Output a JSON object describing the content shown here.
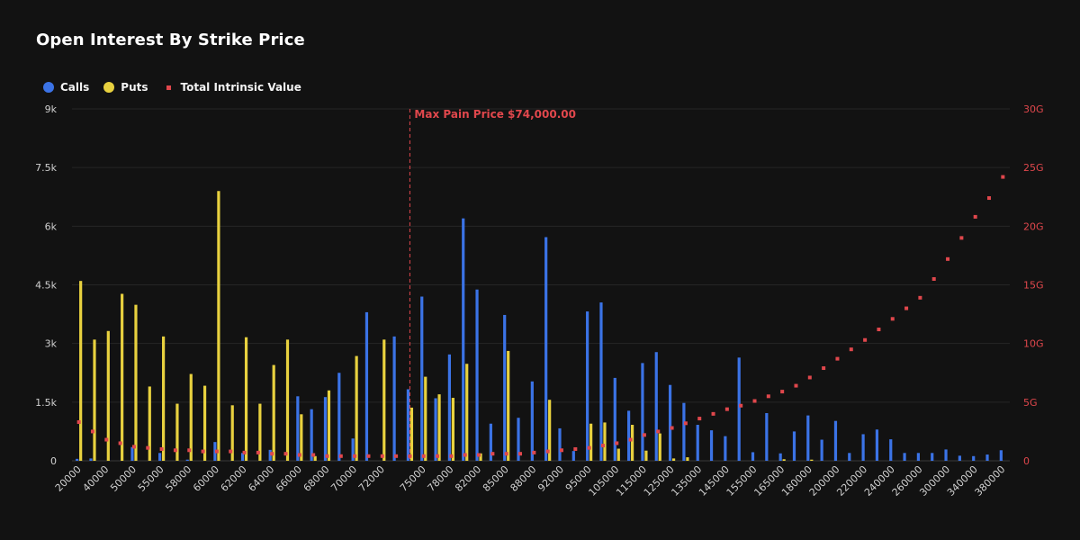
{
  "title": "Open Interest By Strike Price",
  "colors": {
    "calls": "#3b73e6",
    "puts": "#e8d13f",
    "intrinsic": "#e0474c",
    "maxpain": "#e0474c",
    "text": "#d0d0d0",
    "grid": "#262626"
  },
  "legend": {
    "calls": "Calls",
    "puts": "Puts",
    "intrinsic": "Total Intrinsic Value"
  },
  "chart_data": {
    "type": "bar",
    "title": "Open Interest By Strike Price",
    "left_axis": {
      "ticks": [
        "0",
        "1.5k",
        "3k",
        "4.5k",
        "6k",
        "7.5k",
        "9k"
      ],
      "range": [
        0,
        9000
      ]
    },
    "right_axis": {
      "ticks": [
        "0",
        "5G",
        "10G",
        "15G",
        "20G",
        "25G",
        "30G"
      ],
      "range": [
        0,
        30
      ]
    },
    "max_pain": {
      "label": "Max Pain Price $74,000.00",
      "strike": 74000
    },
    "tick_labels": [
      "20000",
      "40000",
      "50000",
      "55000",
      "58000",
      "60000",
      "62000",
      "64000",
      "66000",
      "68000",
      "70000",
      "72000",
      "75000",
      "78000",
      "82000",
      "85000",
      "88000",
      "92000",
      "95000",
      "105000",
      "115000",
      "125000",
      "135000",
      "145000",
      "155000",
      "165000",
      "180000",
      "200000",
      "220000",
      "240000",
      "260000",
      "300000",
      "340000",
      "380000"
    ],
    "strikes": [
      "20000",
      "30000",
      "40000",
      "45000",
      "50000",
      "52000",
      "55000",
      "56000",
      "58000",
      "59000",
      "60000",
      "61000",
      "62000",
      "63000",
      "64000",
      "65000",
      "66000",
      "67000",
      "68000",
      "69000",
      "70000",
      "71000",
      "72000",
      "73000",
      "74000",
      "75000",
      "76000",
      "78000",
      "80000",
      "82000",
      "84000",
      "85000",
      "86000",
      "88000",
      "90000",
      "92000",
      "94000",
      "95000",
      "100000",
      "105000",
      "110000",
      "115000",
      "120000",
      "125000",
      "130000",
      "135000",
      "140000",
      "145000",
      "150000",
      "155000",
      "160000",
      "165000",
      "170000",
      "180000",
      "190000",
      "200000",
      "210000",
      "220000",
      "230000",
      "240000",
      "250000",
      "260000",
      "280000",
      "300000",
      "320000",
      "340000",
      "360000",
      "380000"
    ],
    "series": [
      {
        "name": "Calls",
        "values": [
          50,
          60,
          0,
          0,
          350,
          0,
          200,
          0,
          30,
          0,
          480,
          0,
          200,
          0,
          280,
          0,
          1650,
          1320,
          1630,
          2250,
          570,
          3800,
          0,
          3180,
          1830,
          4200,
          1600,
          2720,
          6200,
          4380,
          950,
          3730,
          1100,
          2030,
          5720,
          830,
          250,
          3820,
          4050,
          2120,
          1280,
          2500,
          2780,
          1940,
          1480,
          920,
          780,
          630,
          2640,
          220,
          1220,
          190,
          750,
          1160,
          540,
          1020,
          200,
          680,
          800,
          550,
          200,
          200,
          200,
          290,
          130,
          120,
          160,
          270
        ]
      },
      {
        "name": "Puts",
        "values": [
          4600,
          3100,
          3320,
          4270,
          3990,
          1900,
          3180,
          1460,
          2220,
          1920,
          6900,
          1420,
          3160,
          1460,
          2450,
          3100,
          1190,
          120,
          1800,
          0,
          2680,
          0,
          3100,
          0,
          1360,
          2150,
          1700,
          1610,
          2480,
          190,
          0,
          2810,
          0,
          0,
          1560,
          0,
          0,
          950,
          980,
          310,
          920,
          260,
          700,
          60,
          90,
          0,
          0,
          0,
          0,
          0,
          0,
          40,
          0,
          30,
          0,
          0,
          0,
          0,
          0,
          0,
          0,
          0,
          0,
          0,
          0,
          0,
          0,
          0
        ]
      },
      {
        "name": "Total Intrinsic Value",
        "axis": "right",
        "values": [
          3.3,
          2.5,
          1.8,
          1.5,
          1.2,
          1.1,
          1.0,
          0.9,
          0.9,
          0.8,
          0.8,
          0.8,
          0.7,
          0.7,
          0.6,
          0.6,
          0.5,
          0.5,
          0.4,
          0.4,
          0.4,
          0.4,
          0.4,
          0.4,
          0.4,
          0.4,
          0.4,
          0.4,
          0.5,
          0.5,
          0.6,
          0.6,
          0.6,
          0.7,
          0.8,
          0.9,
          1.0,
          1.1,
          1.3,
          1.5,
          1.8,
          2.2,
          2.5,
          2.8,
          3.2,
          3.6,
          4.0,
          4.4,
          4.7,
          5.1,
          5.5,
          5.9,
          6.4,
          7.1,
          7.9,
          8.7,
          9.5,
          10.3,
          11.2,
          12.1,
          13.0,
          13.9,
          15.5,
          17.2,
          19.0,
          20.8,
          22.4,
          24.2
        ]
      }
    ]
  }
}
